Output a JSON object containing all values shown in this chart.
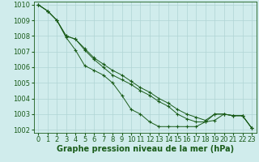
{
  "background_color": "#d0ecec",
  "grid_color": "#b0d4d4",
  "line_color": "#1a5c1a",
  "xlabel": "Graphe pression niveau de la mer (hPa)",
  "xlabel_fontsize": 7,
  "tick_fontsize": 6,
  "ylim": [
    1001.8,
    1010.2
  ],
  "xlim": [
    -0.5,
    23.5
  ],
  "yticks": [
    1002,
    1003,
    1004,
    1005,
    1006,
    1007,
    1008,
    1009,
    1010
  ],
  "xticks": [
    0,
    1,
    2,
    3,
    4,
    5,
    6,
    7,
    8,
    9,
    10,
    11,
    12,
    13,
    14,
    15,
    16,
    17,
    18,
    19,
    20,
    21,
    22,
    23
  ],
  "series1": [
    1010,
    1009.6,
    1009.0,
    1007.9,
    1007.1,
    1006.1,
    1005.8,
    1005.5,
    1005.0,
    1004.2,
    1003.3,
    1003.0,
    1002.5,
    1002.2,
    1002.2,
    1002.2,
    1002.2,
    1002.2,
    1002.5,
    1002.6,
    1003.0,
    1002.9,
    1002.9,
    1002.1
  ],
  "series2": [
    1010,
    1009.6,
    1009.0,
    1008.0,
    1007.8,
    1007.1,
    1006.5,
    1006.0,
    1005.5,
    1005.2,
    1004.9,
    1004.5,
    1004.2,
    1003.8,
    1003.5,
    1003.0,
    1002.7,
    1002.5,
    1002.5,
    1003.0,
    1003.0,
    1002.9,
    1002.9,
    1002.1
  ],
  "series3": [
    1010,
    1009.6,
    1009.0,
    1008.0,
    1007.8,
    1007.2,
    1006.6,
    1006.2,
    1005.8,
    1005.5,
    1005.1,
    1004.7,
    1004.4,
    1004.0,
    1003.7,
    1003.3,
    1003.0,
    1002.8,
    1002.6,
    1003.0,
    1003.0,
    1002.9,
    1002.9,
    1002.1
  ]
}
